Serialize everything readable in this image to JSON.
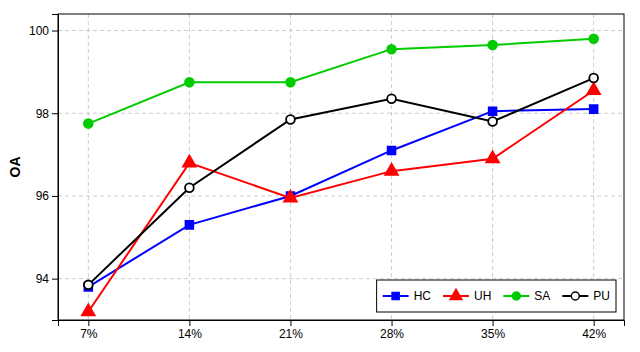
{
  "chart_data": {
    "type": "line",
    "y_label": "OA",
    "categories": [
      "7%",
      "14%",
      "21%",
      "28%",
      "35%",
      "42%"
    ],
    "series": [
      {
        "name": "HC",
        "color": "#0000FF",
        "marker": "square",
        "values": [
          93.8,
          95.3,
          96.0,
          97.1,
          98.05,
          98.1
        ]
      },
      {
        "name": "UH",
        "color": "#FF0000",
        "marker": "triangle",
        "values": [
          93.2,
          96.8,
          95.95,
          96.6,
          96.9,
          98.55
        ]
      },
      {
        "name": "SA",
        "color": "#00CC00",
        "marker": "circle",
        "values": [
          97.75,
          98.75,
          98.75,
          99.55,
          99.65,
          99.8
        ]
      },
      {
        "name": "PU",
        "color": "#000000",
        "marker": "open-circle",
        "values": [
          93.85,
          96.2,
          97.85,
          98.35,
          97.8,
          98.85
        ]
      }
    ],
    "ylim": [
      93.0,
      100.4
    ],
    "yticks": [
      94,
      96,
      98,
      100
    ],
    "grid": true,
    "legend": "lower right"
  }
}
